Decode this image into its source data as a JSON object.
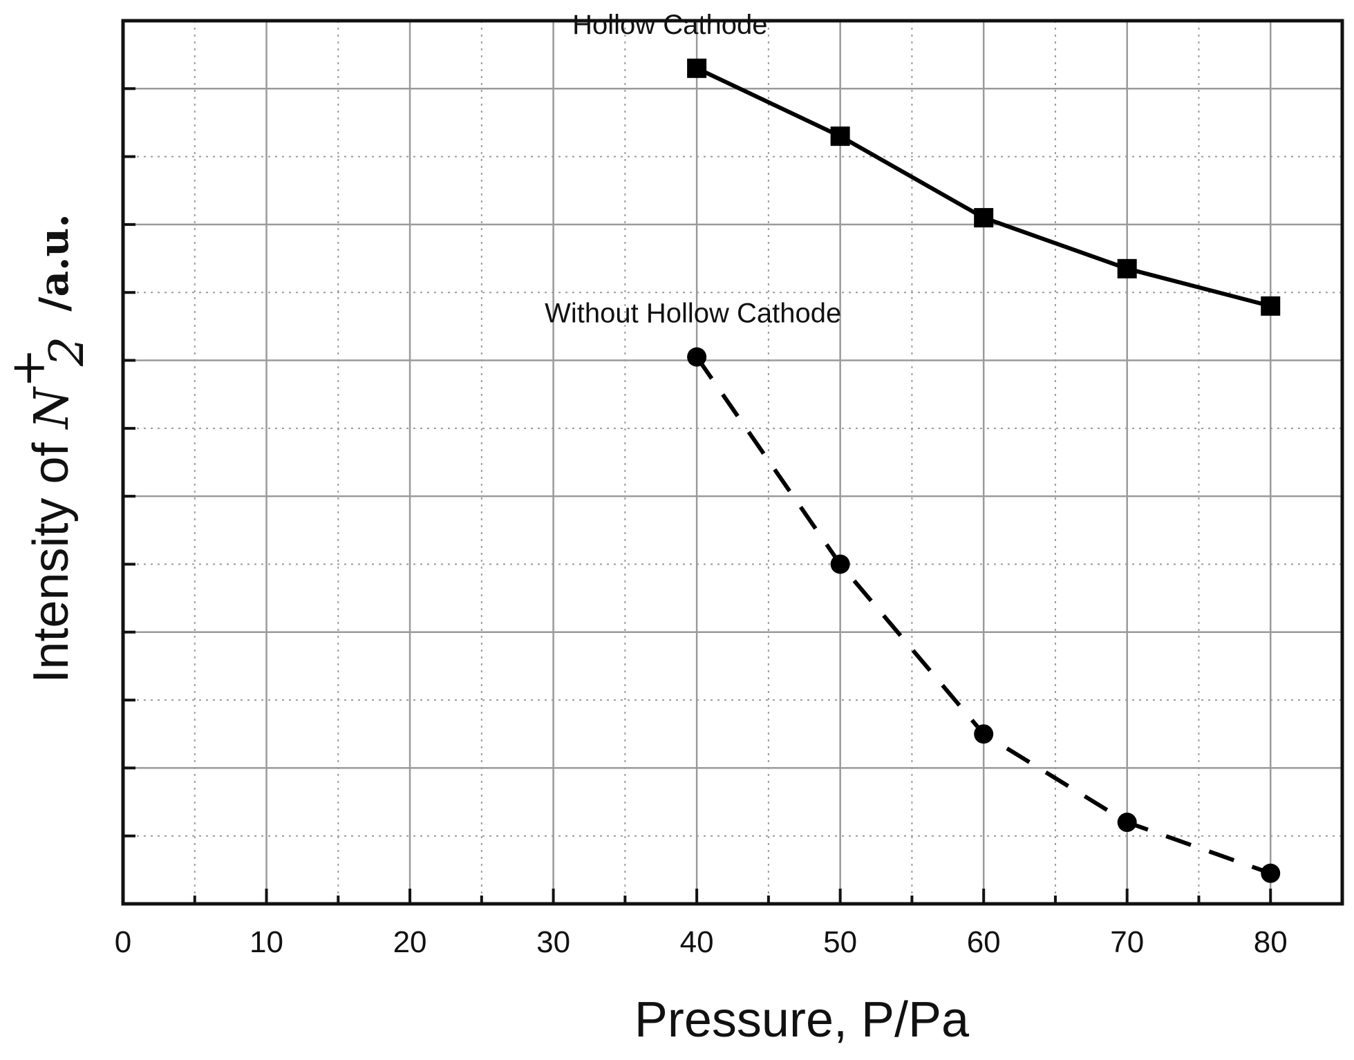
{
  "chart_data": {
    "type": "line",
    "xlabel": "Pressure, P/Pa",
    "ylabel_prefix": "Intensity of ",
    "ylabel_symbol": "N",
    "ylabel_superscript": "+",
    "ylabel_subscript": "2",
    "ylabel_unit": "/a.u.",
    "xlim": [
      0,
      85
    ],
    "ylim": [
      0,
      13
    ],
    "x_ticks": [
      0,
      10,
      20,
      30,
      40,
      50,
      60,
      70,
      80
    ],
    "x_tick_labels": [
      "0",
      "10",
      "20",
      "30",
      "40",
      "50",
      "60",
      "70",
      "80"
    ],
    "x_minor_step": 5,
    "y_tick_step": 1,
    "y_tick_labels_shown": false,
    "grid": true,
    "x": [
      40,
      50,
      60,
      70,
      80
    ],
    "series": [
      {
        "label": "Hollow Cathode",
        "values": [
          12.3,
          11.3,
          10.1,
          9.35,
          8.8
        ],
        "marker": "square",
        "line_style": "solid",
        "color": "#000000"
      },
      {
        "label": "Without Hollow Cathode",
        "values": [
          8.05,
          5.0,
          2.5,
          1.2,
          0.45
        ],
        "marker": "circle",
        "line_style": "dashed",
        "color": "#000000"
      }
    ]
  }
}
